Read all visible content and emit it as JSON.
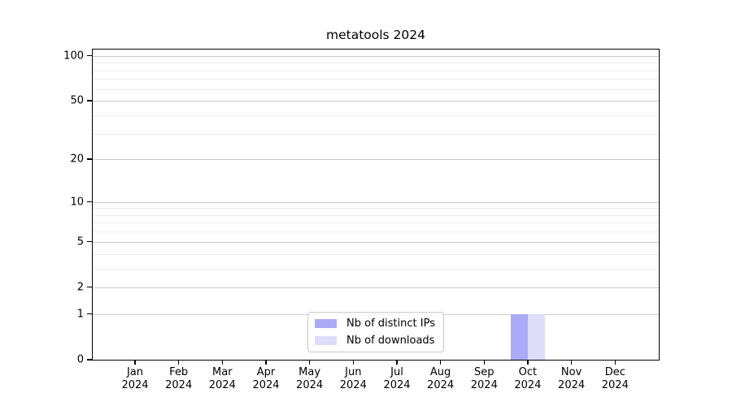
{
  "figure": {
    "title": "metatools 2024",
    "background_color": "#ffffff"
  },
  "chart_data": {
    "type": "bar",
    "title": "metatools 2024",
    "xlabel": "",
    "ylabel": "",
    "categories": [
      {
        "month": "Jan",
        "year": "2024"
      },
      {
        "month": "Feb",
        "year": "2024"
      },
      {
        "month": "Mar",
        "year": "2024"
      },
      {
        "month": "Apr",
        "year": "2024"
      },
      {
        "month": "May",
        "year": "2024"
      },
      {
        "month": "Jun",
        "year": "2024"
      },
      {
        "month": "Jul",
        "year": "2024"
      },
      {
        "month": "Aug",
        "year": "2024"
      },
      {
        "month": "Sep",
        "year": "2024"
      },
      {
        "month": "Oct",
        "year": "2024"
      },
      {
        "month": "Nov",
        "year": "2024"
      },
      {
        "month": "Dec",
        "year": "2024"
      }
    ],
    "series": [
      {
        "name": "Nb of distinct IPs",
        "color": "#aaaaf6",
        "values": [
          0,
          0,
          0,
          0,
          0,
          0,
          0,
          0,
          0,
          1,
          0,
          0
        ]
      },
      {
        "name": "Nb of downloads",
        "color": "#ddddf9",
        "values": [
          0,
          0,
          0,
          0,
          0,
          0,
          0,
          0,
          0,
          1,
          0,
          0
        ]
      }
    ],
    "yscale": "log10(value+1)",
    "ylim": [
      0,
      110
    ],
    "y_major_ticks": [
      0,
      1,
      2,
      5,
      10,
      20,
      50,
      100
    ],
    "y_minor_gridlines": [
      3,
      4,
      6,
      7,
      8,
      9,
      30,
      40,
      60,
      70,
      80,
      90
    ],
    "grid": true,
    "legend_position": "lower center",
    "colors": {
      "major_grid": "#cbcbcb",
      "minor_grid": "#ececec",
      "spine": "#000000",
      "text": "#000000"
    }
  }
}
